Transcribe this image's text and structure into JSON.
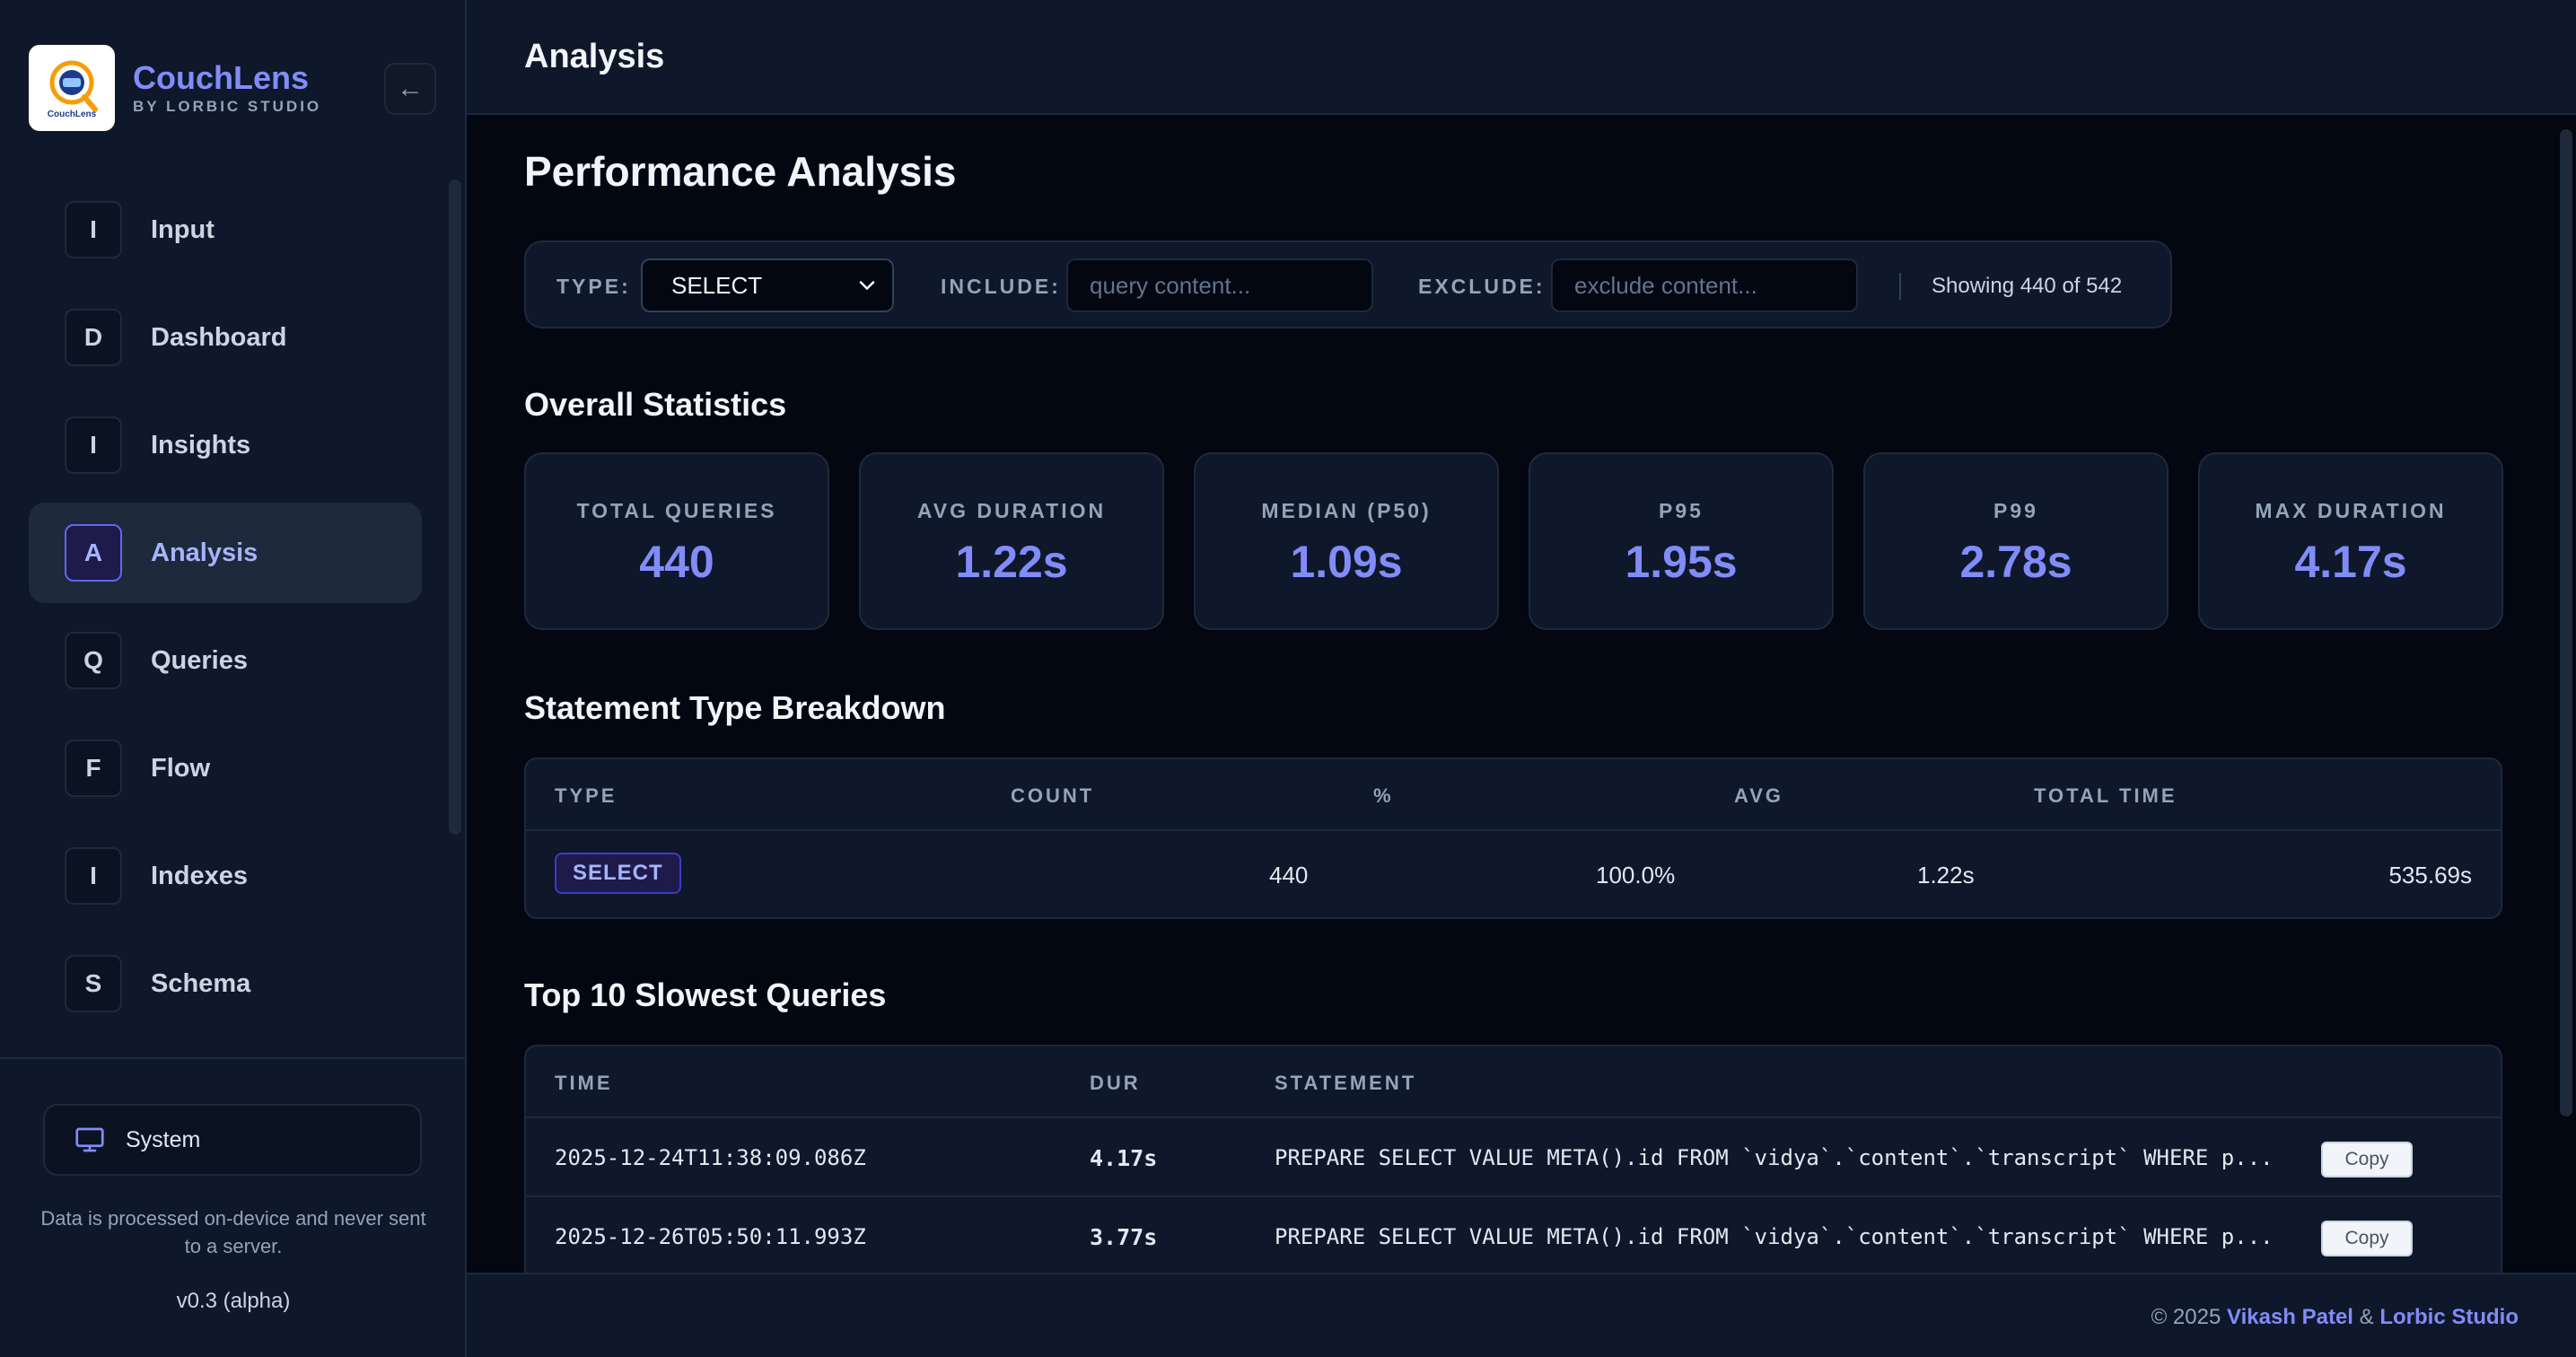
{
  "brand": {
    "name": "CouchLens",
    "subtitle": "BY LORBIC STUDIO",
    "logo_text": "CouchLens",
    "collapse_icon": "←"
  },
  "nav": [
    {
      "badge": "I",
      "label": "Input"
    },
    {
      "badge": "D",
      "label": "Dashboard"
    },
    {
      "badge": "I",
      "label": "Insights"
    },
    {
      "badge": "A",
      "label": "Analysis",
      "active": true
    },
    {
      "badge": "Q",
      "label": "Queries"
    },
    {
      "badge": "F",
      "label": "Flow"
    },
    {
      "badge": "I",
      "label": "Indexes"
    },
    {
      "badge": "S",
      "label": "Schema"
    }
  ],
  "sidebar_footer": {
    "theme_label": "System",
    "privacy": "Data is processed on-device and never sent to a server.",
    "version": "v0.3 (alpha)"
  },
  "header": {
    "title": "Analysis"
  },
  "page": {
    "title": "Performance Analysis"
  },
  "filters": {
    "type_label": "TYPE:",
    "type_value": "SELECT",
    "include_label": "INCLUDE:",
    "include_placeholder": "query content...",
    "exclude_label": "EXCLUDE:",
    "exclude_placeholder": "exclude content...",
    "count_text": "Showing 440 of 542"
  },
  "overall": {
    "title": "Overall Statistics",
    "cards": [
      {
        "label": "TOTAL QUERIES",
        "value": "440"
      },
      {
        "label": "AVG DURATION",
        "value": "1.22s"
      },
      {
        "label": "MEDIAN (P50)",
        "value": "1.09s"
      },
      {
        "label": "P95",
        "value": "1.95s"
      },
      {
        "label": "P99",
        "value": "2.78s"
      },
      {
        "label": "MAX DURATION",
        "value": "4.17s"
      }
    ]
  },
  "breakdown": {
    "title": "Statement Type Breakdown",
    "headers": {
      "type": "TYPE",
      "count": "COUNT",
      "pct": "%",
      "avg": "AVG",
      "total": "TOTAL TIME"
    },
    "rows": [
      {
        "type": "SELECT",
        "count": "440",
        "pct": "100.0%",
        "avg": "1.22s",
        "total": "535.69s"
      }
    ]
  },
  "slowest": {
    "title": "Top 10 Slowest Queries",
    "headers": {
      "time": "TIME",
      "dur": "DUR",
      "statement": "STATEMENT"
    },
    "copy_label": "Copy",
    "rows": [
      {
        "time": "2025-12-24T11:38:09.086Z",
        "dur": "4.17s",
        "statement": "PREPARE SELECT VALUE META().id FROM `vidya`.`content`.`transcript` WHERE p..."
      },
      {
        "time": "2025-12-26T05:50:11.993Z",
        "dur": "3.77s",
        "statement": "PREPARE SELECT VALUE META().id FROM `vidya`.`content`.`transcript` WHERE p..."
      }
    ]
  },
  "footer": {
    "copyright": "© 2025",
    "author": "Vikash Patel",
    "amp": "&",
    "studio": "Lorbic Studio"
  },
  "colors": {
    "accent": "#818cf8",
    "background": "#030712",
    "panel": "#0f172a",
    "border": "#1e293b"
  }
}
